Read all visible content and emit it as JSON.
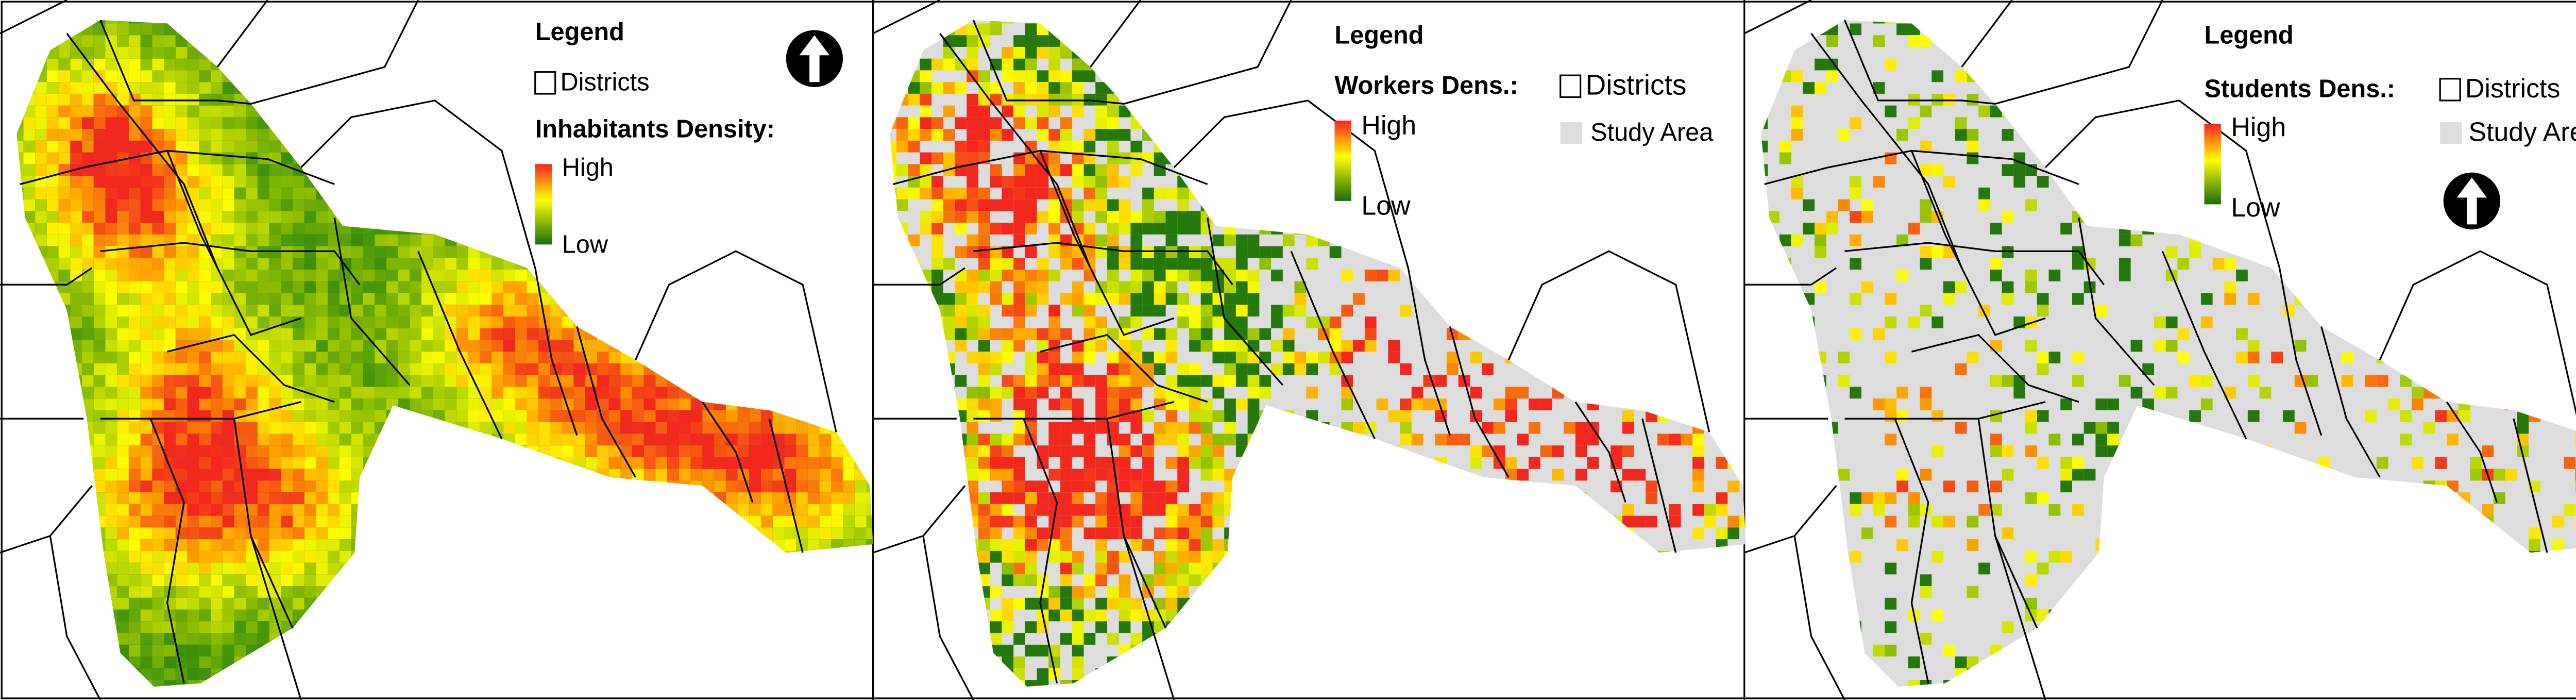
{
  "panels": [
    {
      "legend": {
        "title": "Legend",
        "districts": "Districts",
        "density_title": "Inhabitants Density:",
        "high": "High",
        "low": "Low"
      }
    },
    {
      "legend": {
        "title": "Legend",
        "density_title": "Workers Dens.:",
        "districts": "Districts",
        "study_area": "Study Area",
        "high": "High",
        "low": "Low"
      }
    },
    {
      "legend": {
        "title": "Legend",
        "density_title": "Students Dens.:",
        "districts": "Districts",
        "study_area": "Study Area",
        "high": "High",
        "low": "Low"
      }
    }
  ]
}
